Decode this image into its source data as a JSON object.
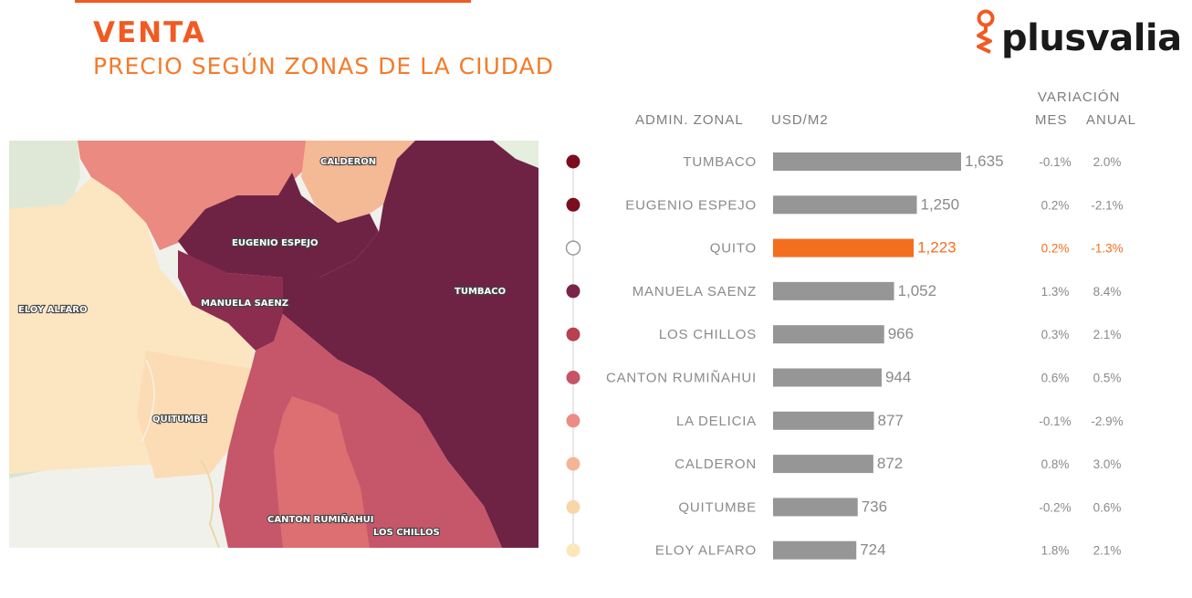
{
  "header": {
    "title": "VENTA",
    "subtitle": "PRECIO SEGÚN ZONAS DE LA CIUDAD"
  },
  "logo": {
    "text": "plusvalia",
    "color": "#f15a22"
  },
  "map": {
    "labels": {
      "calderon": "CALDERON",
      "eugenio_espejo": "EUGENIO ESPEJO",
      "eloy_alfaro": "ELOY ALFARO",
      "manuela_saenz": "MANUELA SAENZ",
      "tumbaco": "TUMBACO",
      "quitumbe": "QUITUMBE",
      "canton_rumiñahui": "CANTON RUMIÑAHUI",
      "los_chillos": "LOS CHILLOS"
    }
  },
  "table_headers": {
    "zone": "ADMIN. ZONAL",
    "price": "USD/M2",
    "variation": "VARIACIÓN",
    "month": "MES",
    "annual": "ANUAL"
  },
  "chart_data": {
    "type": "bar",
    "orientation": "horizontal",
    "categories": [
      "TUMBACO",
      "EUGENIO ESPEJO",
      "QUITO",
      "MANUELA SAENZ",
      "LOS CHILLOS",
      "CANTON RUMIÑAHUI",
      "LA DELICIA",
      "CALDERON",
      "QUITUMBE",
      "ELOY ALFARO"
    ],
    "values": [
      1635,
      1250,
      1223,
      1052,
      966,
      944,
      877,
      872,
      736,
      724
    ],
    "value_labels": [
      "1,635",
      "1,250",
      "1,223",
      "1,052",
      "966",
      "944",
      "877",
      "872",
      "736",
      "724"
    ],
    "variation_month": [
      "-0.1%",
      "0.2%",
      "0.2%",
      "1.3%",
      "0.3%",
      "0.6%",
      "-0.1%",
      "0.8%",
      "-0.2%",
      "1.8%"
    ],
    "variation_annual": [
      "2.0%",
      "-2.1%",
      "-1.3%",
      "8.4%",
      "2.1%",
      "0.5%",
      "-2.9%",
      "3.0%",
      "0.6%",
      "2.1%"
    ],
    "dot_colors": [
      "#7b0e1e",
      "#7b0e1e",
      "#ffffff",
      "#7a2449",
      "#b8404f",
      "#c65466",
      "#ec8d85",
      "#f6b496",
      "#f9d6a8",
      "#fce7b8"
    ],
    "highlight": "QUITO",
    "bar_color": "#969696",
    "highlight_color": "#f36f20"
  }
}
